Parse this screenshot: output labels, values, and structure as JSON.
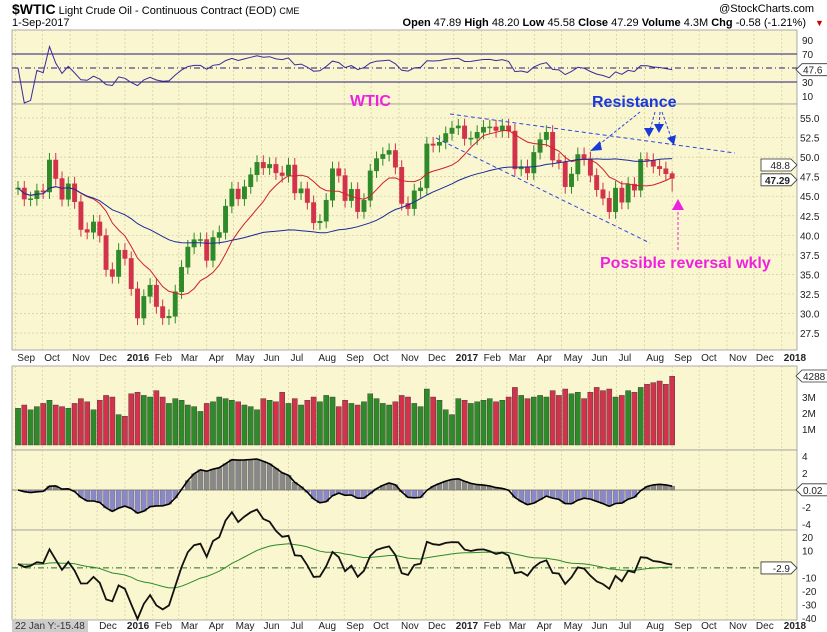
{
  "header": {
    "symbol": "$WTIC",
    "name": "Light Crude Oil - Continuous Contract (EOD)",
    "exchange": "CME",
    "date": "1-Sep-2017",
    "brand": "@StockCharts.com",
    "open_label": "Open",
    "open": "47.89",
    "high_label": "High",
    "high": "48.20",
    "low_label": "Low",
    "low": "45.58",
    "close_label": "Close",
    "close": "47.29",
    "volume_label": "Volume",
    "volume": "4.3M",
    "chg_label": "Chg",
    "chg": "-0.58 (-1.21%)"
  },
  "colors": {
    "background": "#faf6cf",
    "up": "#2f8a2a",
    "down": "#d2334a",
    "ma_fast": "#d0202a",
    "ma_slow": "#1a2a9c",
    "annotation_magenta": "#ee22dd",
    "annotation_blue": "#1a3ad8"
  },
  "annotations": {
    "ticker": "WTIC",
    "resistance": "Resistance",
    "reversal": "Possible reversal wkly"
  },
  "chart_data": {
    "type": "candlestick",
    "interval": "weekly",
    "first_week_ending": "2015-09-04",
    "closes": [
      46.05,
      44.63,
      44.68,
      45.7,
      45.54,
      49.63,
      47.26,
      44.6,
      46.59,
      44.29,
      40.74,
      40.39,
      41.71,
      39.97,
      35.62,
      34.73,
      38.1,
      37.04,
      33.16,
      29.42,
      32.19,
      33.62,
      30.89,
      29.44,
      29.64,
      32.78,
      35.92,
      38.5,
      39.44,
      39.46,
      36.79,
      39.72,
      40.36,
      43.73,
      45.92,
      44.66,
      46.21,
      47.75,
      49.33,
      48.62,
      49.07,
      47.98,
      47.64,
      48.99,
      45.41,
      45.95,
      44.19,
      41.6,
      41.8,
      44.49,
      48.52,
      47.64,
      44.44,
      45.88,
      43.03,
      44.48,
      48.24,
      49.81,
      50.35,
      50.85,
      48.7,
      44.07,
      43.41,
      45.69,
      46.06,
      51.68,
      51.5,
      51.9,
      53.02,
      53.72,
      53.99,
      52.37,
      52.42,
      53.17,
      53.83,
      53.86,
      53.4,
      53.99,
      53.33,
      48.49,
      48.78,
      47.97,
      50.6,
      52.24,
      53.18,
      49.62,
      49.33,
      46.22,
      47.84,
      50.33,
      49.8,
      47.66,
      45.83,
      44.74,
      43.01,
      46.04,
      44.23,
      46.54,
      45.77,
      49.71,
      49.58,
      48.82,
      48.51,
      47.87,
      47.29
    ],
    "last_bar": {
      "open": 47.89,
      "high": 48.2,
      "low": 45.58,
      "close": 47.29
    },
    "volume_millions": [
      2.3,
      2.5,
      2.2,
      2.4,
      2.6,
      2.8,
      2.5,
      2.4,
      2.3,
      2.6,
      2.9,
      2.7,
      2.2,
      2.8,
      3.1,
      3.0,
      1.9,
      1.8,
      3.2,
      3.3,
      3.1,
      3.0,
      3.4,
      3.0,
      2.6,
      2.9,
      2.8,
      2.5,
      2.4,
      2.1,
      2.6,
      2.7,
      3.0,
      2.9,
      2.8,
      2.7,
      2.5,
      2.4,
      2.2,
      2.9,
      2.8,
      2.7,
      3.3,
      2.6,
      2.9,
      2.5,
      2.8,
      3.0,
      2.7,
      3.1,
      3.0,
      2.4,
      2.8,
      2.6,
      2.5,
      2.7,
      3.2,
      2.9,
      2.6,
      2.5,
      2.7,
      3.1,
      3.0,
      2.6,
      2.4,
      3.5,
      3.0,
      2.8,
      2.2,
      1.9,
      2.9,
      2.8,
      2.6,
      2.7,
      2.8,
      2.9,
      2.7,
      2.8,
      3.0,
      3.6,
      3.1,
      2.9,
      3.0,
      3.1,
      3.0,
      3.4,
      3.1,
      3.5,
      3.2,
      3.3,
      2.9,
      3.3,
      3.6,
      3.4,
      3.5,
      3.0,
      3.1,
      3.4,
      3.3,
      3.6,
      3.8,
      3.9,
      4.0,
      3.8,
      4.3
    ],
    "moving_averages": {
      "fast_weeks": 10,
      "slow_weeks": 40
    },
    "price_axis": {
      "ylim": [
        25,
        57.5
      ],
      "ticks": [
        "55.0",
        "52.5",
        "50.0",
        "47.5",
        "45.0",
        "42.5",
        "40.0",
        "37.5",
        "35.0",
        "32.5",
        "30.0",
        "27.5"
      ],
      "ma_slow_label": "48.8",
      "close_label": "47.29"
    },
    "rsi_axis": {
      "ticks": [
        "90",
        "70",
        "30",
        "10"
      ],
      "value_label": "47.6"
    },
    "volume_axis": {
      "ticks": [
        "3M",
        "2M",
        "1M"
      ],
      "value_label": "4288"
    },
    "macd_axis": {
      "ticks": [
        "4",
        "2",
        "-2",
        "-4"
      ],
      "value_label": "0.02"
    },
    "lower_axis": {
      "ticks": [
        "20",
        "10",
        "-10",
        "-20",
        "-30",
        "-40"
      ],
      "value_label": "-2.9"
    },
    "x_ticks": [
      {
        "date": "2015-09-01",
        "label": "Sep"
      },
      {
        "date": "2015-10-01",
        "label": "Oct"
      },
      {
        "date": "2015-11-01",
        "label": "Nov"
      },
      {
        "date": "2015-12-01",
        "label": "Dec"
      },
      {
        "date": "2016-01-01",
        "label": "2016",
        "bold": true
      },
      {
        "date": "2016-02-01",
        "label": "Feb"
      },
      {
        "date": "2016-03-01",
        "label": "Mar"
      },
      {
        "date": "2016-04-01",
        "label": "Apr"
      },
      {
        "date": "2016-05-01",
        "label": "May"
      },
      {
        "date": "2016-06-01",
        "label": "Jun"
      },
      {
        "date": "2016-07-01",
        "label": "Jul"
      },
      {
        "date": "2016-08-01",
        "label": "Aug"
      },
      {
        "date": "2016-09-01",
        "label": "Sep"
      },
      {
        "date": "2016-10-01",
        "label": "Oct"
      },
      {
        "date": "2016-11-01",
        "label": "Nov"
      },
      {
        "date": "2016-12-01",
        "label": "Dec"
      },
      {
        "date": "2017-01-01",
        "label": "2017",
        "bold": true
      },
      {
        "date": "2017-02-01",
        "label": "Feb"
      },
      {
        "date": "2017-03-01",
        "label": "Mar"
      },
      {
        "date": "2017-04-01",
        "label": "Apr"
      },
      {
        "date": "2017-05-01",
        "label": "May"
      },
      {
        "date": "2017-06-01",
        "label": "Jun"
      },
      {
        "date": "2017-07-01",
        "label": "Jul"
      },
      {
        "date": "2017-08-01",
        "label": "Aug"
      },
      {
        "date": "2017-09-01",
        "label": "Sep"
      },
      {
        "date": "2017-10-01",
        "label": "Oct"
      },
      {
        "date": "2017-11-01",
        "label": "Nov"
      },
      {
        "date": "2017-12-01",
        "label": "Dec"
      },
      {
        "date": "2018-01-01",
        "label": "2018",
        "bold": true
      }
    ],
    "crosshair_readout": "22 Jan Y:-15.48"
  }
}
